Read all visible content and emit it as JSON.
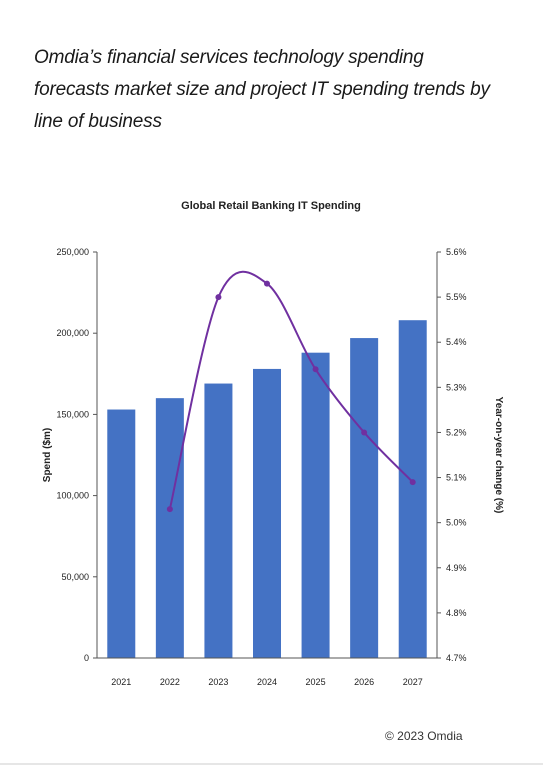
{
  "headline": "Omdia’s financial services technology spending forecasts market size and project IT spending trends by line of business",
  "copyright": "© 2023  Omdia",
  "chart_data": {
    "type": "bar",
    "title": "Global Retail Banking IT Spending",
    "categories": [
      "2021",
      "2022",
      "2023",
      "2024",
      "2025",
      "2026",
      "2027"
    ],
    "series": [
      {
        "values": [
          153000,
          160000,
          169000,
          178000,
          188000,
          197000,
          208000
        ],
        "color": "#4472c4",
        "axis": "left",
        "kind": "bar"
      },
      {
        "values": [
          null,
          5.03,
          5.5,
          5.53,
          5.34,
          5.2,
          5.09
        ],
        "color": "#7030a0",
        "axis": "right",
        "kind": "line"
      }
    ],
    "ylabel": "Spend ($m)",
    "y2label": "Year-on-year change (%)",
    "ylim": [
      0,
      250000
    ],
    "y2lim": [
      4.7,
      5.6
    ],
    "yticks": [
      "0",
      "50,000",
      "100,000",
      "150,000",
      "200,000",
      "250,000"
    ],
    "y2ticks": [
      "4.7%",
      "4.8%",
      "4.9%",
      "5.0%",
      "5.1%",
      "5.2%",
      "5.3%",
      "5.4%",
      "5.5%",
      "5.6%"
    ],
    "grid": false
  }
}
